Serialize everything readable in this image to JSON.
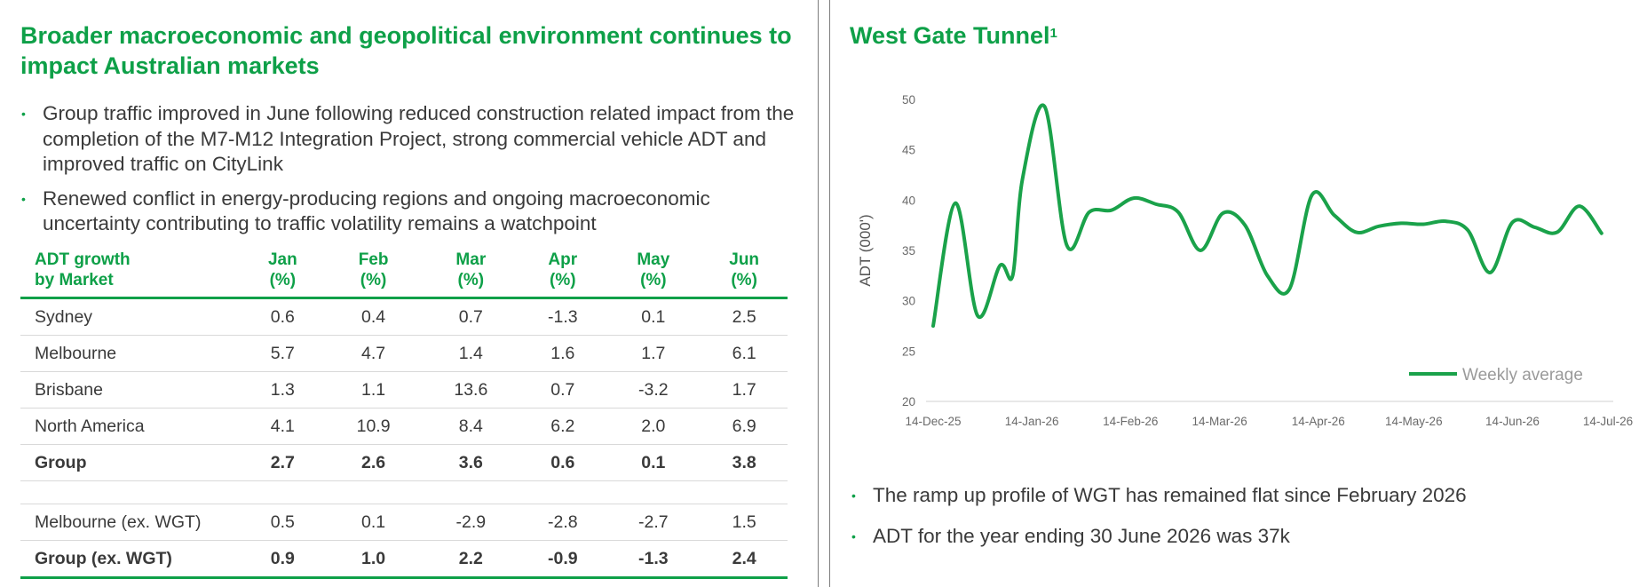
{
  "left": {
    "title": "Broader macroeconomic and geopolitical environment continues to impact Australian markets",
    "bullets": [
      "Group traffic improved in June following reduced construction related impact from the completion of the M7-M12 Integration Project, strong commercial vehicle ADT and improved traffic on CityLink",
      "Renewed conflict in energy-producing regions and ongoing macroeconomic uncertainty contributing to traffic volatility remains a watchpoint"
    ],
    "table": {
      "header_line1": [
        "ADT growth",
        "Jan",
        "Feb",
        "Mar",
        "Apr",
        "May",
        "Jun"
      ],
      "header_line2": [
        "by Market",
        "(%)",
        "(%)",
        "(%)",
        "(%)",
        "(%)",
        "(%)"
      ],
      "rows": [
        [
          "Sydney",
          "0.6",
          "0.4",
          "0.7",
          "-1.3",
          "0.1",
          "2.5"
        ],
        [
          "Melbourne",
          "5.7",
          "4.7",
          "1.4",
          "1.6",
          "1.7",
          "6.1"
        ],
        [
          "Brisbane",
          "1.3",
          "1.1",
          "13.6",
          "0.7",
          "-3.2",
          "1.7"
        ],
        [
          "North America",
          "4.1",
          "10.9",
          "8.4",
          "6.2",
          "2.0",
          "6.9"
        ],
        [
          "Group",
          "2.7",
          "2.6",
          "3.6",
          "0.6",
          "0.1",
          "3.8"
        ]
      ],
      "rows_ex_wgt": [
        [
          "Melbourne (ex. WGT)",
          "0.5",
          "0.1",
          "-2.9",
          "-2.8",
          "-2.7",
          "1.5"
        ],
        [
          "Group (ex. WGT)",
          "0.9",
          "1.0",
          "2.2",
          "-0.9",
          "-1.3",
          "2.4"
        ]
      ]
    }
  },
  "right": {
    "title": "West Gate Tunnel",
    "title_sup": "1",
    "bullets": [
      "The ramp up profile of WGT has remained flat since February 2026",
      "ADT for the year ending 30 June 2026 was 37k"
    ]
  },
  "chart_data": {
    "type": "line",
    "title": "West Gate Tunnel",
    "ylabel": "ADT (000')",
    "xlabel": "",
    "ylim": [
      20,
      50
    ],
    "yticks": [
      20,
      25,
      30,
      35,
      40,
      45,
      50
    ],
    "xticks": [
      "14-Dec-25",
      "14-Jan-26",
      "14-Feb-26",
      "14-Mar-26",
      "14-Apr-26",
      "14-May-26",
      "14-Jun-26",
      "14-Jul-26"
    ],
    "xrange": [
      "2025-12-14",
      "2026-07-14"
    ],
    "legend": "bottom-right",
    "grid": false,
    "color": "#1aa24a",
    "series": [
      {
        "name": "Weekly average",
        "points": [
          [
            "2025-12-14",
            27.5
          ],
          [
            "2025-12-21",
            39.7
          ],
          [
            "2025-12-28",
            28.5
          ],
          [
            "2026-01-04",
            33.5
          ],
          [
            "2026-01-08",
            32.5
          ],
          [
            "2026-01-11",
            42.0
          ],
          [
            "2026-01-18",
            49.3
          ],
          [
            "2026-01-25",
            35.5
          ],
          [
            "2026-02-01",
            38.8
          ],
          [
            "2026-02-08",
            39.0
          ],
          [
            "2026-02-15",
            40.2
          ],
          [
            "2026-02-22",
            39.6
          ],
          [
            "2026-03-01",
            38.8
          ],
          [
            "2026-03-08",
            35.0
          ],
          [
            "2026-03-15",
            38.7
          ],
          [
            "2026-03-22",
            37.5
          ],
          [
            "2026-03-29",
            32.5
          ],
          [
            "2026-04-05",
            31.2
          ],
          [
            "2026-04-12",
            40.5
          ],
          [
            "2026-04-19",
            38.5
          ],
          [
            "2026-04-26",
            36.8
          ],
          [
            "2026-05-03",
            37.4
          ],
          [
            "2026-05-10",
            37.7
          ],
          [
            "2026-05-17",
            37.6
          ],
          [
            "2026-05-24",
            37.9
          ],
          [
            "2026-05-31",
            37.0
          ],
          [
            "2026-06-07",
            32.8
          ],
          [
            "2026-06-14",
            37.8
          ],
          [
            "2026-06-21",
            37.3
          ],
          [
            "2026-06-28",
            36.8
          ],
          [
            "2026-07-05",
            39.4
          ],
          [
            "2026-07-12",
            36.7
          ]
        ]
      }
    ]
  }
}
